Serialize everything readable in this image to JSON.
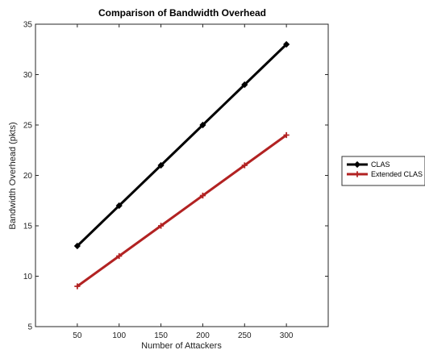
{
  "chart_data": {
    "type": "line",
    "title": "Comparison of Bandwidth Overhead",
    "xlabel": "Number of Attackers",
    "ylabel": "Bandwidth Overhead (pkts)",
    "x": [
      50,
      100,
      150,
      200,
      250,
      300
    ],
    "xlim": [
      0,
      350
    ],
    "ylim": [
      5,
      35
    ],
    "xticks": [
      50,
      100,
      150,
      200,
      250,
      300
    ],
    "yticks": [
      5,
      10,
      15,
      20,
      25,
      30,
      35
    ],
    "grid": false,
    "legend_position": "outside-right",
    "series": [
      {
        "name": "CLAS",
        "values": [
          13,
          17,
          21,
          25,
          29,
          33
        ],
        "color": "#000000",
        "marker": "diamond"
      },
      {
        "name": "Extended CLAS",
        "values": [
          9,
          12,
          15,
          18,
          21,
          24
        ],
        "color": "#b22222",
        "marker": "plus"
      }
    ]
  }
}
